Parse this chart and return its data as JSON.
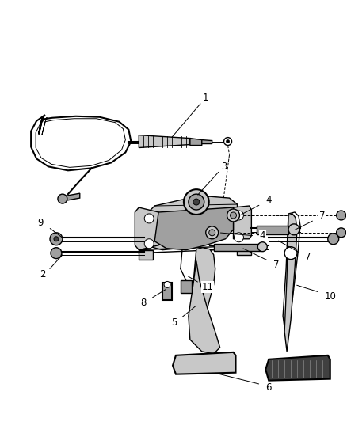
{
  "background_color": "#ffffff",
  "figsize": [
    4.38,
    5.33
  ],
  "dpi": 100,
  "lc": "#000000",
  "gray1": "#c8c8c8",
  "gray2": "#a0a0a0",
  "gray3": "#606060",
  "gray_dark": "#404040"
}
